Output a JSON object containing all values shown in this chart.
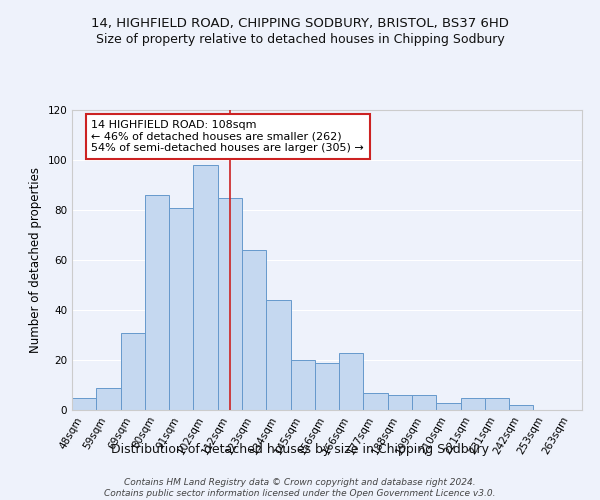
{
  "title1": "14, HIGHFIELD ROAD, CHIPPING SODBURY, BRISTOL, BS37 6HD",
  "title2": "Size of property relative to detached houses in Chipping Sodbury",
  "xlabel": "Distribution of detached houses by size in Chipping Sodbury",
  "ylabel": "Number of detached properties",
  "footer": "Contains HM Land Registry data © Crown copyright and database right 2024.\nContains public sector information licensed under the Open Government Licence v3.0.",
  "bar_labels": [
    "48sqm",
    "59sqm",
    "69sqm",
    "80sqm",
    "91sqm",
    "102sqm",
    "112sqm",
    "123sqm",
    "134sqm",
    "145sqm",
    "156sqm",
    "166sqm",
    "177sqm",
    "188sqm",
    "199sqm",
    "210sqm",
    "221sqm",
    "231sqm",
    "242sqm",
    "253sqm",
    "263sqm"
  ],
  "bar_values": [
    5,
    9,
    31,
    86,
    81,
    98,
    85,
    64,
    44,
    20,
    19,
    23,
    7,
    6,
    6,
    3,
    5,
    5,
    2,
    0,
    0
  ],
  "bar_color": "#c5d8f0",
  "bar_edge_color": "#6699cc",
  "vline_x_index": 6.0,
  "annotation_text": "14 HIGHFIELD ROAD: 108sqm\n← 46% of detached houses are smaller (262)\n54% of semi-detached houses are larger (305) →",
  "vline_color": "#cc2222",
  "annotation_box_edge": "#cc2222",
  "ylim": [
    0,
    120
  ],
  "yticks": [
    0,
    20,
    40,
    60,
    80,
    100,
    120
  ],
  "background_color": "#eef2fb",
  "grid_color": "#ffffff",
  "title1_fontsize": 9.5,
  "title2_fontsize": 9,
  "xlabel_fontsize": 9,
  "ylabel_fontsize": 8.5,
  "tick_fontsize": 7.5,
  "annotation_fontsize": 8,
  "footer_fontsize": 6.5
}
